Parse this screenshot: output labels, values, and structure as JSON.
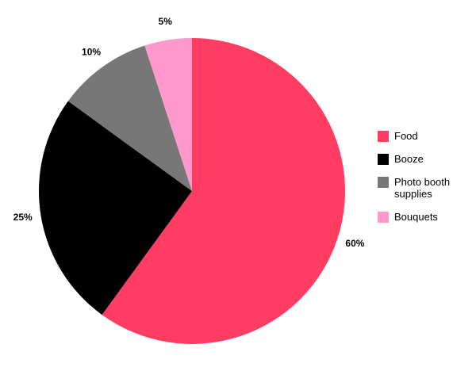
{
  "chart_data": {
    "type": "pie",
    "categories": [
      "Food",
      "Booze",
      "Photo booth supplies",
      "Bouquets"
    ],
    "values": [
      60,
      25,
      10,
      5
    ],
    "value_labels": [
      "60%",
      "25%",
      "10%",
      "5%"
    ],
    "colors": [
      "#ff3d63",
      "#000000",
      "#777777",
      "#ff99cc"
    ],
    "legend": "right"
  }
}
